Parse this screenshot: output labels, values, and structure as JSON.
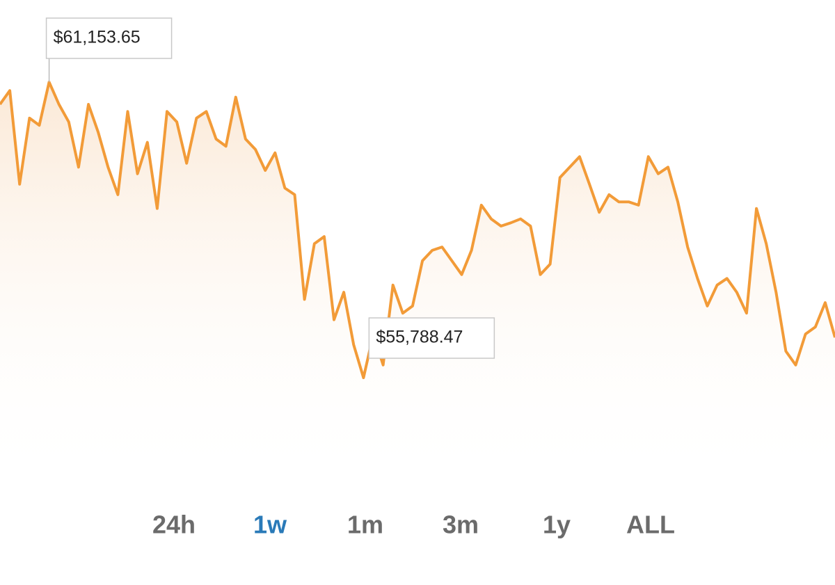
{
  "chart_data": {
    "type": "line",
    "color": "#f29b38",
    "values": [
      60750,
      61000,
      59300,
      60500,
      60370,
      61153.65,
      60750,
      60430,
      59610,
      60750,
      60240,
      59610,
      59110,
      60620,
      59490,
      60060,
      58860,
      60620,
      60430,
      59680,
      60500,
      60620,
      60120,
      59990,
      60880,
      60120,
      59930,
      59550,
      59870,
      59230,
      59110,
      57210,
      58220,
      58350,
      56840,
      57340,
      56390,
      55788.47,
      56580,
      56020,
      57470,
      56960,
      57090,
      57910,
      58100,
      58160,
      57910,
      57660,
      58100,
      58920,
      58670,
      58540,
      58600,
      58670,
      58540,
      57660,
      57850,
      59420,
      59610,
      59800,
      59300,
      58790,
      59110,
      58980,
      58980,
      58920,
      59800,
      59490,
      59610,
      58980,
      58160,
      57590,
      57090,
      57470,
      57590,
      57340,
      56960,
      58860,
      58220,
      57340,
      56270,
      56020,
      56580,
      56710,
      57150,
      56520
    ],
    "annotations": [
      {
        "label": "$61,153.65",
        "value": 61153.65
      },
      {
        "label": "$55,788.47",
        "value": 55788.47
      }
    ]
  },
  "ranges": [
    "24h",
    "1w",
    "1m",
    "3m",
    "1y",
    "ALL"
  ],
  "active_range_index": 1
}
